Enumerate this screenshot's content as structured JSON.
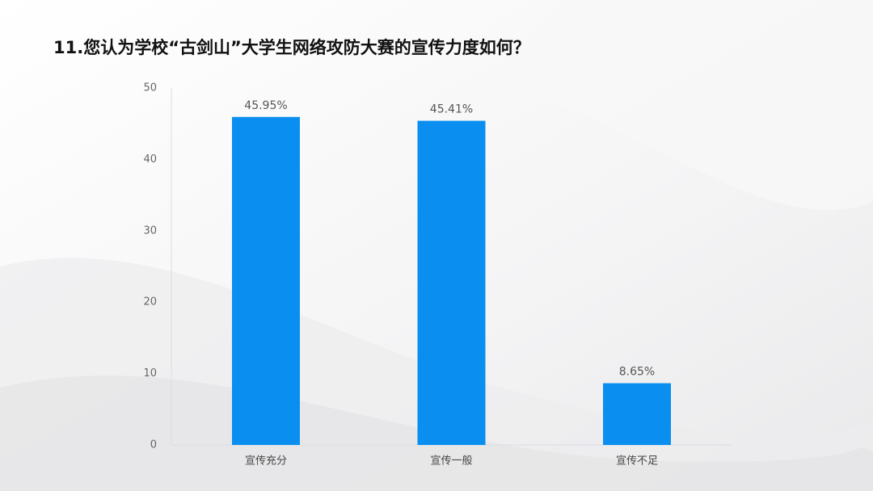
{
  "chart_data": {
    "type": "bar",
    "title": "11.您认为学校“古剑山”大学生网络攻防大赛的宣传力度如何？",
    "categories": [
      "宣传充分",
      "宣传一般",
      "宣传不足"
    ],
    "values": [
      45.95,
      45.41,
      8.65
    ],
    "value_labels": [
      "45.95%",
      "45.41%",
      "8.65%"
    ],
    "color": "#0a8ff0",
    "ylim": [
      0,
      50
    ],
    "yticks": [
      0,
      10,
      20,
      30,
      40,
      50
    ],
    "grid": false
  }
}
